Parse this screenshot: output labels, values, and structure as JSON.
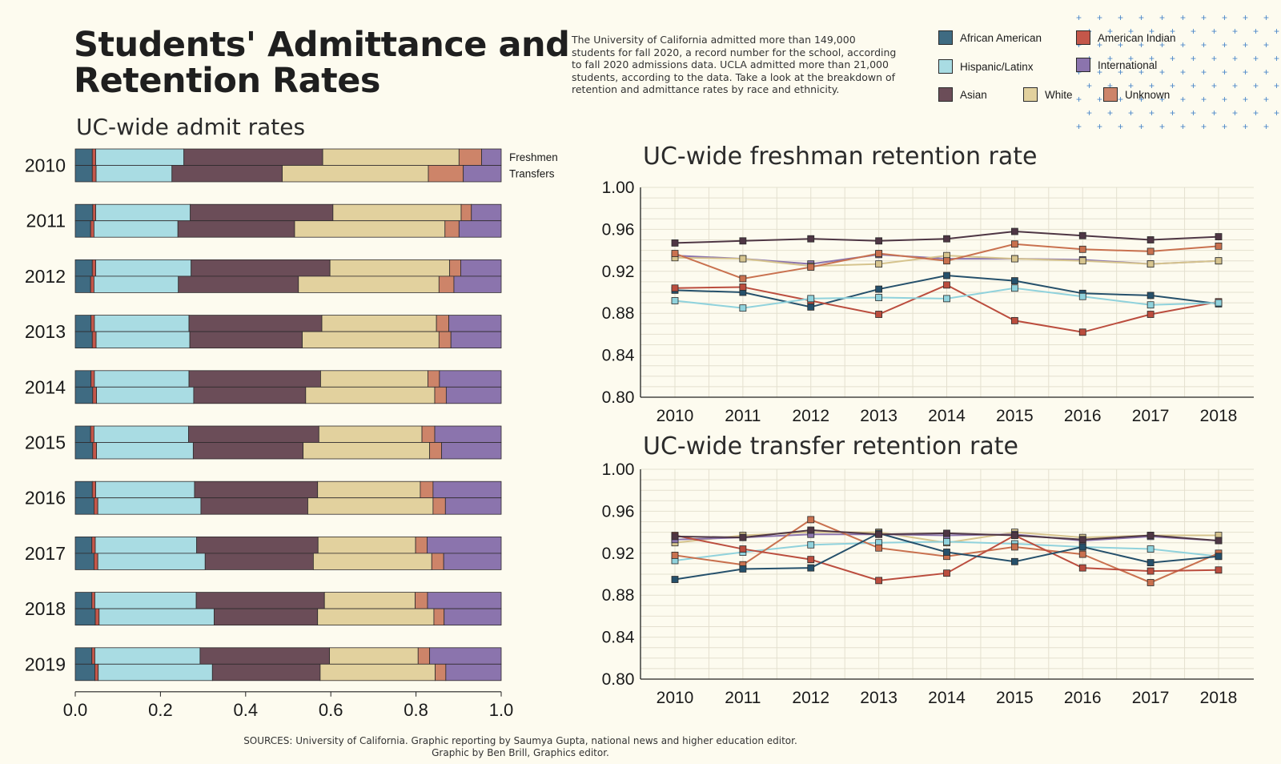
{
  "header": {
    "title_line1": "Students' Admittance and",
    "title_line2": "Retention Rates",
    "intro": "The University of California admitted more than 149,000 students for fall 2020, a record number for the school, according to fall 2020 admissions data. UCLA admitted more than 21,000 students, according to the data. Take a look at the breakdown of retention and admittance rates by race and ethnicity."
  },
  "legend": [
    {
      "name": "African American",
      "color": "#3f6b82"
    },
    {
      "name": "American Indian",
      "color": "#c4574a"
    },
    {
      "name": "Hispanic/Latinx",
      "color": "#a9dce3"
    },
    {
      "name": "International",
      "color": "#8b74ad"
    },
    {
      "name": "Asian",
      "color": "#6b4d58"
    },
    {
      "name": "White",
      "color": "#e2d19e"
    },
    {
      "name": "Unknown",
      "color": "#cd8469"
    }
  ],
  "footer": {
    "line1": "SOURCES: University of California. Graphic reporting by Saumya Gupta, national news and higher education editor.",
    "line2": "Graphic by Ben Brill, Graphics editor."
  },
  "chart_data": [
    {
      "type": "bar",
      "stacked": true,
      "orientation": "horizontal",
      "title": "UC-wide admit rates",
      "row_labels": [
        "Freshmen",
        "Transfers"
      ],
      "categories": [
        "2010",
        "2011",
        "2012",
        "2013",
        "2014",
        "2015",
        "2016",
        "2017",
        "2018",
        "2019"
      ],
      "segments": [
        "African American",
        "American Indian",
        "Hispanic/Latinx",
        "Asian",
        "White",
        "Unknown",
        "International"
      ],
      "xlim": [
        0,
        1
      ],
      "xticks": [
        "0.0",
        "0.2",
        "0.4",
        "0.6",
        "0.8",
        "1.0"
      ],
      "freshmen": [
        [
          0.04,
          0.008,
          0.207,
          0.326,
          0.32,
          0.053,
          0.046
        ],
        [
          0.041,
          0.007,
          0.222,
          0.335,
          0.301,
          0.024,
          0.07
        ],
        [
          0.04,
          0.008,
          0.224,
          0.326,
          0.281,
          0.026,
          0.095
        ],
        [
          0.037,
          0.008,
          0.222,
          0.312,
          0.269,
          0.029,
          0.123
        ],
        [
          0.037,
          0.008,
          0.222,
          0.309,
          0.252,
          0.027,
          0.145
        ],
        [
          0.036,
          0.008,
          0.222,
          0.306,
          0.242,
          0.03,
          0.156
        ],
        [
          0.04,
          0.008,
          0.232,
          0.289,
          0.241,
          0.03,
          0.16
        ],
        [
          0.039,
          0.008,
          0.238,
          0.285,
          0.229,
          0.027,
          0.174
        ],
        [
          0.039,
          0.007,
          0.238,
          0.301,
          0.213,
          0.029,
          0.173
        ],
        [
          0.039,
          0.007,
          0.247,
          0.304,
          0.208,
          0.027,
          0.168
        ]
      ],
      "transfers": [
        [
          0.04,
          0.009,
          0.178,
          0.259,
          0.343,
          0.082,
          0.089
        ],
        [
          0.036,
          0.008,
          0.197,
          0.274,
          0.353,
          0.033,
          0.099
        ],
        [
          0.036,
          0.008,
          0.198,
          0.282,
          0.33,
          0.035,
          0.111
        ],
        [
          0.04,
          0.009,
          0.22,
          0.264,
          0.321,
          0.028,
          0.118
        ],
        [
          0.041,
          0.009,
          0.228,
          0.263,
          0.303,
          0.027,
          0.129
        ],
        [
          0.041,
          0.009,
          0.227,
          0.258,
          0.297,
          0.028,
          0.14
        ],
        [
          0.044,
          0.009,
          0.242,
          0.251,
          0.294,
          0.029,
          0.131
        ],
        [
          0.044,
          0.009,
          0.252,
          0.254,
          0.278,
          0.028,
          0.135
        ],
        [
          0.047,
          0.009,
          0.27,
          0.243,
          0.273,
          0.024,
          0.134
        ],
        [
          0.046,
          0.008,
          0.268,
          0.253,
          0.27,
          0.025,
          0.13
        ]
      ]
    },
    {
      "type": "line",
      "title": "UC-wide freshman retention rate",
      "x": [
        2010,
        2011,
        2012,
        2013,
        2014,
        2015,
        2016,
        2017,
        2018
      ],
      "ylim": [
        0.8,
        1.0
      ],
      "yticks": [
        "1.00",
        "0.96",
        "0.92",
        "0.88",
        "0.84",
        "0.80"
      ],
      "grid": true,
      "series": [
        {
          "name": "African American",
          "color": "#25506b",
          "values": [
            0.902,
            0.9,
            0.886,
            0.903,
            0.916,
            0.911,
            0.899,
            0.897,
            0.889
          ]
        },
        {
          "name": "American Indian",
          "color": "#bb4d3e",
          "values": [
            0.904,
            0.905,
            0.892,
            0.879,
            0.907,
            0.873,
            0.862,
            0.879,
            0.891
          ]
        },
        {
          "name": "Hispanic/Latinx",
          "color": "#90d2dc",
          "values": [
            0.892,
            0.885,
            0.894,
            0.895,
            0.894,
            0.904,
            0.896,
            0.888,
            0.89
          ]
        },
        {
          "name": "International",
          "color": "#8b74ad",
          "values": [
            0.935,
            0.932,
            0.927,
            0.936,
            0.932,
            0.932,
            0.931,
            0.927,
            0.93
          ]
        },
        {
          "name": "White",
          "color": "#d6c48e",
          "values": [
            0.933,
            0.932,
            0.925,
            0.927,
            0.935,
            0.932,
            0.93,
            0.927,
            0.93
          ]
        },
        {
          "name": "Unknown",
          "color": "#c9714f",
          "values": [
            0.937,
            0.913,
            0.924,
            0.937,
            0.93,
            0.946,
            0.941,
            0.939,
            0.944
          ]
        },
        {
          "name": "Asian",
          "color": "#4e3644",
          "values": [
            0.947,
            0.949,
            0.951,
            0.949,
            0.951,
            0.958,
            0.954,
            0.95,
            0.953
          ]
        }
      ]
    },
    {
      "type": "line",
      "title": "UC-wide transfer retention rate",
      "x": [
        2010,
        2011,
        2012,
        2013,
        2014,
        2015,
        2016,
        2017,
        2018
      ],
      "ylim": [
        0.8,
        1.0
      ],
      "yticks": [
        "1.00",
        "0.96",
        "0.92",
        "0.88",
        "0.84",
        "0.80"
      ],
      "grid": true,
      "series": [
        {
          "name": "White",
          "color": "#d6c48e",
          "values": [
            0.93,
            0.937,
            0.94,
            0.94,
            0.93,
            0.94,
            0.935,
            0.937,
            0.937
          ]
        },
        {
          "name": "International",
          "color": "#8b74ad",
          "values": [
            0.933,
            0.935,
            0.938,
            0.938,
            0.937,
            0.938,
            0.932,
            0.936,
            0.932
          ]
        },
        {
          "name": "Hispanic/Latinx",
          "color": "#90d2dc",
          "values": [
            0.913,
            0.921,
            0.928,
            0.93,
            0.931,
            0.929,
            0.926,
            0.924,
            0.917
          ]
        },
        {
          "name": "Unknown",
          "color": "#c9714f",
          "values": [
            0.918,
            0.909,
            0.952,
            0.925,
            0.917,
            0.926,
            0.919,
            0.892,
            0.92
          ]
        },
        {
          "name": "American Indian",
          "color": "#bb4d3e",
          "values": [
            0.937,
            0.924,
            0.914,
            0.894,
            0.901,
            0.937,
            0.906,
            0.903,
            0.904
          ]
        },
        {
          "name": "African American",
          "color": "#25506b",
          "values": [
            0.895,
            0.905,
            0.906,
            0.939,
            0.921,
            0.912,
            0.926,
            0.911,
            0.917
          ]
        },
        {
          "name": "Asian",
          "color": "#4e3644",
          "values": [
            0.936,
            0.935,
            0.942,
            0.938,
            0.939,
            0.937,
            0.933,
            0.937,
            0.932
          ]
        }
      ]
    }
  ]
}
